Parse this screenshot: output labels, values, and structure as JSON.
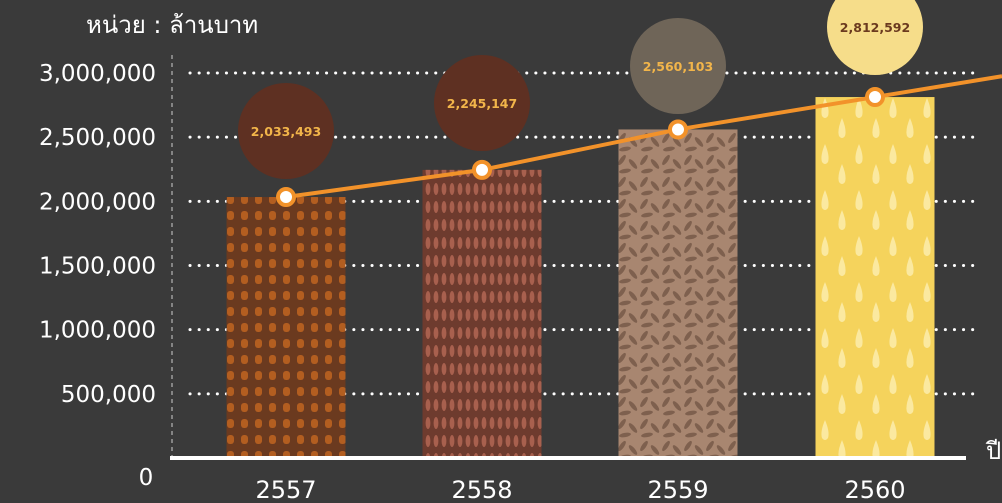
{
  "chart_data": {
    "type": "bar",
    "y_unit_label": "หน่วย : ล้านบาท",
    "x_axis_label": "ปี",
    "categories": [
      "2557",
      "2558",
      "2559",
      "2560"
    ],
    "values": [
      2033493,
      2245147,
      2560103,
      2812592
    ],
    "value_labels": [
      "2,033,493",
      "2,245,147",
      "2,560,103",
      "2,812,592"
    ],
    "ylim": [
      0,
      3000000
    ],
    "yticks": [
      0,
      500000,
      1000000,
      1500000,
      2000000,
      2500000,
      3000000
    ],
    "ytick_labels": [
      "0",
      "500,000",
      "1,000,000",
      "1,500,000",
      "2,000,000",
      "2,500,000",
      "3,000,000"
    ],
    "grid": "dotted horizontal",
    "overlay": "trend line through bar tops",
    "colors": {
      "background": "#3a3a3a",
      "line": "#f2922a",
      "bars": [
        "#6b3a1f",
        "#6e3b2e",
        "#a88670",
        "#f5d35c"
      ],
      "bar_patterns": [
        "#b35e20",
        "#a8604e",
        "#7e604e",
        "#fbe9a0"
      ],
      "bubbles": [
        "#5e3022",
        "#5e3022",
        "#6f6558",
        "#f6dd8a"
      ],
      "bubble_text": [
        "#f2b54a",
        "#f2b54a",
        "#f2b54a",
        "#6b3a1f"
      ]
    }
  }
}
